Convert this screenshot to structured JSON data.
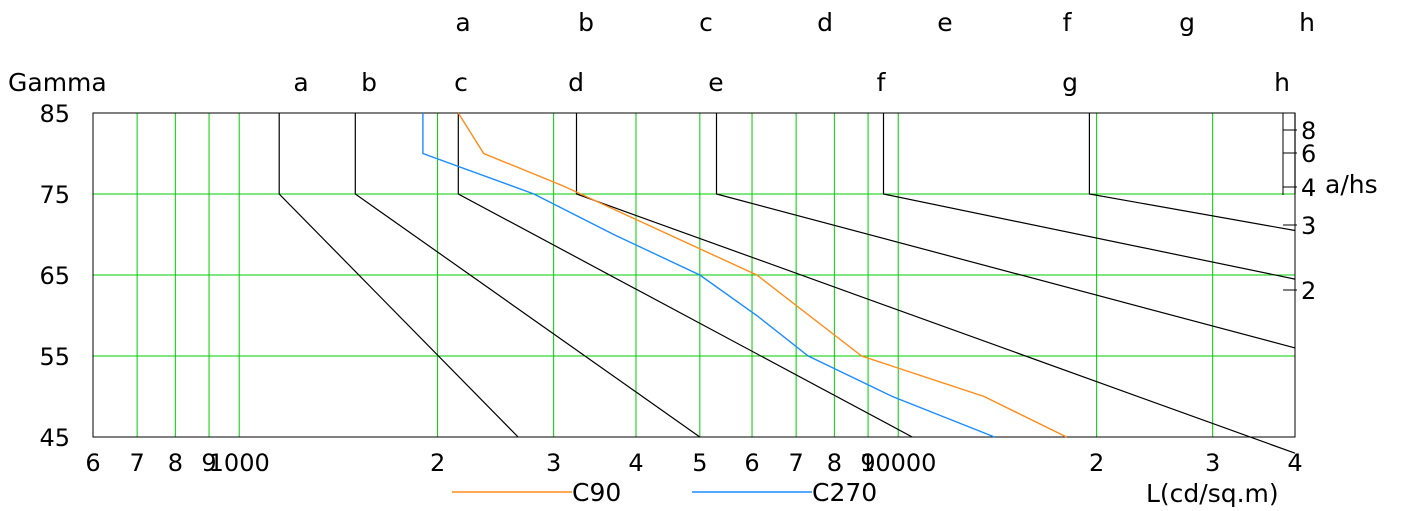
{
  "chart_data": {
    "type": "line",
    "title": "",
    "ylabel": "Gamma",
    "xlabel": "L(cd/sq.m)",
    "right_axis_label": "a/hs",
    "x_scale": "log",
    "xlim": [
      600,
      40000
    ],
    "ylim": [
      45,
      85
    ],
    "x_tick_labels": [
      {
        "value": 600,
        "label": "6"
      },
      {
        "value": 700,
        "label": "7"
      },
      {
        "value": 800,
        "label": "8"
      },
      {
        "value": 900,
        "label": "9"
      },
      {
        "value": 1000,
        "label": "1000"
      },
      {
        "value": 2000,
        "label": "2"
      },
      {
        "value": 3000,
        "label": "3"
      },
      {
        "value": 4000,
        "label": "4"
      },
      {
        "value": 5000,
        "label": "5"
      },
      {
        "value": 6000,
        "label": "6"
      },
      {
        "value": 7000,
        "label": "7"
      },
      {
        "value": 8000,
        "label": "8"
      },
      {
        "value": 9000,
        "label": "9"
      },
      {
        "value": 10000,
        "label": "10000"
      },
      {
        "value": 20000,
        "label": "2"
      },
      {
        "value": 30000,
        "label": "3"
      },
      {
        "value": 40000,
        "label": "4"
      }
    ],
    "y_tick_labels": [
      {
        "value": 45,
        "label": "45"
      },
      {
        "value": 55,
        "label": "55"
      },
      {
        "value": 65,
        "label": "65"
      },
      {
        "value": 75,
        "label": "75"
      },
      {
        "value": 85,
        "label": "85"
      }
    ],
    "right_tick_labels": [
      {
        "value": 2,
        "label": "2"
      },
      {
        "value": 3,
        "label": "3"
      },
      {
        "value": 4,
        "label": "4"
      },
      {
        "value": 6,
        "label": "6"
      },
      {
        "value": 8,
        "label": "8"
      }
    ],
    "curve_labels_lower": [
      "a",
      "b",
      "c",
      "d",
      "e",
      "f",
      "g",
      "h"
    ],
    "curve_labels_upper": [
      "a",
      "b",
      "c",
      "d",
      "e",
      "f",
      "g",
      "h"
    ],
    "series": [
      {
        "name": "C90",
        "color": "#ff8c1a",
        "points": [
          [
            2150,
            85
          ],
          [
            2350,
            80
          ],
          [
            3100,
            76
          ],
          [
            6100,
            65
          ],
          [
            8800,
            55
          ],
          [
            13500,
            50
          ],
          [
            18000,
            45
          ]
        ]
      },
      {
        "name": "C270",
        "color": "#1a8cff",
        "points": [
          [
            1900,
            85
          ],
          [
            1900,
            80
          ],
          [
            2800,
            75
          ],
          [
            3700,
            70
          ],
          [
            5000,
            65
          ],
          [
            6100,
            60
          ],
          [
            7300,
            55
          ],
          [
            9800,
            50
          ],
          [
            14000,
            45
          ]
        ]
      }
    ],
    "reference_curves": [
      {
        "label": "a",
        "points": [
          [
            1150,
            85
          ],
          [
            1150,
            75
          ],
          [
            2650,
            45
          ]
        ]
      },
      {
        "label": "b",
        "points": [
          [
            1500,
            85
          ],
          [
            1500,
            75
          ],
          [
            5000,
            45
          ]
        ]
      },
      {
        "label": "c",
        "points": [
          [
            2150,
            85
          ],
          [
            2150,
            75
          ],
          [
            10500,
            45
          ]
        ]
      },
      {
        "label": "d",
        "points": [
          [
            3250,
            85
          ],
          [
            3250,
            75
          ],
          [
            40000,
            43
          ]
        ]
      },
      {
        "label": "e",
        "points": [
          [
            5300,
            85
          ],
          [
            5300,
            75
          ],
          [
            40000,
            56
          ]
        ]
      },
      {
        "label": "f",
        "points": [
          [
            9500,
            85
          ],
          [
            9500,
            75
          ],
          [
            40000,
            64.5
          ]
        ]
      },
      {
        "label": "g",
        "points": [
          [
            19500,
            85
          ],
          [
            19500,
            75
          ],
          [
            40000,
            70.5
          ]
        ]
      },
      {
        "label": "h",
        "points": [
          [
            40000,
            85
          ],
          [
            40000,
            75
          ],
          [
            40000,
            75
          ]
        ]
      }
    ],
    "grid": true,
    "grid_color": "#00cc00",
    "legend_position": "bottom-center"
  }
}
